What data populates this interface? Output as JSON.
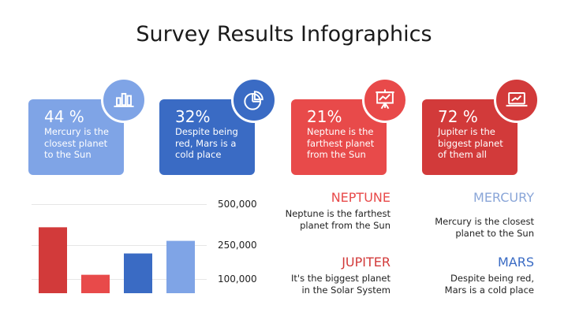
{
  "title": "Survey Results Infographics",
  "cards": [
    {
      "pct": "44 %",
      "desc": "Mercury is the closest planet to the Sun",
      "color": "#7fa4e6",
      "icon": "bar-chart-icon"
    },
    {
      "pct": "32%",
      "desc": "Despite being red, Mars is a cold place",
      "color": "#3a6bc4",
      "icon": "pie-chart-icon"
    },
    {
      "pct": "21%",
      "desc": "Neptune is the farthest planet from the Sun",
      "color": "#e84a4a",
      "icon": "presentation-chart-icon"
    },
    {
      "pct": "72 %",
      "desc": "Jupiter is the biggest planet of them all",
      "color": "#d23a3a",
      "icon": "laptop-chart-icon"
    }
  ],
  "chart_data": {
    "type": "bar",
    "categories": [
      "",
      "",
      "",
      ""
    ],
    "values": [
      340000,
      95000,
      205000,
      270000
    ],
    "colors": [
      "#d23a3a",
      "#e84a4a",
      "#3a6bc4",
      "#7fa4e6"
    ],
    "ticks": [
      "500,000",
      "250,000",
      "100,000"
    ],
    "tick_values": [
      500000,
      250000,
      100000
    ],
    "title": "",
    "xlabel": "",
    "ylabel": "",
    "ylim": [
      0,
      500000
    ],
    "grid": true
  },
  "info": [
    {
      "head": "NEPTUNE",
      "body": "Neptune is the farthest planet from the Sun",
      "color": "#e84a4a"
    },
    {
      "head": "MERCURY",
      "body": "Mercury is the closest planet to the Sun",
      "color": "#8aa6d8"
    },
    {
      "head": "JUPITER",
      "body": "It's the biggest planet in the Solar System",
      "color": "#d23a3a"
    },
    {
      "head": "MARS",
      "body": "Despite being red, Mars is a cold place",
      "color": "#3a6bc4"
    }
  ]
}
